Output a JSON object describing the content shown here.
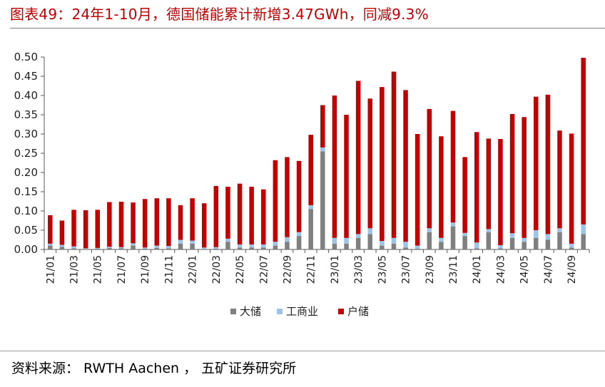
{
  "title": "图表49：24年1-10月，德国储能累计新增3.47GWh，同减9.3%",
  "source": "资料来源： RWTH Aachen ， 五矿证券研究所",
  "chart_data": {
    "type": "bar",
    "stacked": true,
    "title": "",
    "xlabel": "",
    "ylabel": "",
    "ylim": [
      0,
      0.5
    ],
    "yticks": [
      "0.00",
      "0.05",
      "0.10",
      "0.15",
      "0.20",
      "0.25",
      "0.30",
      "0.35",
      "0.40",
      "0.45",
      "0.50"
    ],
    "grid": false,
    "legend_position": "bottom",
    "categories": [
      "21/01",
      "21/02",
      "21/03",
      "21/04",
      "21/05",
      "21/06",
      "21/07",
      "21/08",
      "21/09",
      "21/10",
      "21/11",
      "21/12",
      "22/01",
      "22/02",
      "22/03",
      "22/04",
      "22/05",
      "22/06",
      "22/07",
      "22/08",
      "22/09",
      "22/10",
      "22/11",
      "22/12",
      "23/01",
      "23/02",
      "23/03",
      "23/04",
      "23/05",
      "23/06",
      "23/07",
      "23/08",
      "23/09",
      "23/10",
      "23/11",
      "23/12",
      "24/01",
      "24/02",
      "24/03",
      "24/04",
      "24/05",
      "24/06",
      "24/07",
      "24/08",
      "24/09",
      "24/10"
    ],
    "tick_labels": [
      "21/01",
      "",
      "21/03",
      "",
      "21/05",
      "",
      "21/07",
      "",
      "21/09",
      "",
      "21/11",
      "",
      "22/01",
      "",
      "22/03",
      "",
      "22/05",
      "",
      "22/07",
      "",
      "22/09",
      "",
      "22/11",
      "",
      "23/01",
      "",
      "23/03",
      "",
      "23/05",
      "",
      "23/07",
      "",
      "23/09",
      "",
      "23/11",
      "",
      "24/01",
      "",
      "24/03",
      "",
      "24/05",
      "",
      "24/07",
      "",
      "24/09",
      ""
    ],
    "series": [
      {
        "name": "大储",
        "color": "#7f7f7f",
        "values": [
          0.01,
          0.007,
          0.003,
          0.001,
          0.002,
          0.004,
          0.003,
          0.01,
          0.002,
          0.004,
          0.003,
          0.015,
          0.015,
          0.001,
          0.002,
          0.02,
          0.005,
          0.005,
          0.005,
          0.01,
          0.02,
          0.035,
          0.105,
          0.255,
          0.015,
          0.015,
          0.03,
          0.04,
          0.01,
          0.015,
          0.005,
          0.002,
          0.045,
          0.02,
          0.06,
          0.035,
          0.003,
          0.045,
          0.003,
          0.03,
          0.02,
          0.03,
          0.025,
          0.045,
          0.005,
          0.04
        ]
      },
      {
        "name": "工商业",
        "color": "#9dc3e6",
        "values": [
          0.005,
          0.005,
          0.005,
          0.002,
          0.002,
          0.003,
          0.003,
          0.006,
          0.003,
          0.006,
          0.006,
          0.01,
          0.008,
          0.004,
          0.004,
          0.008,
          0.008,
          0.008,
          0.008,
          0.01,
          0.012,
          0.01,
          0.01,
          0.01,
          0.015,
          0.015,
          0.01,
          0.015,
          0.012,
          0.015,
          0.015,
          0.008,
          0.01,
          0.01,
          0.01,
          0.008,
          0.015,
          0.008,
          0.008,
          0.012,
          0.01,
          0.02,
          0.015,
          0.01,
          0.01,
          0.025
        ]
      },
      {
        "name": "户储",
        "color": "#c00000",
        "values": [
          0.074,
          0.063,
          0.095,
          0.099,
          0.099,
          0.116,
          0.118,
          0.106,
          0.126,
          0.123,
          0.124,
          0.09,
          0.11,
          0.115,
          0.159,
          0.135,
          0.158,
          0.15,
          0.143,
          0.212,
          0.208,
          0.185,
          0.183,
          0.11,
          0.37,
          0.32,
          0.398,
          0.337,
          0.4,
          0.432,
          0.394,
          0.29,
          0.31,
          0.264,
          0.29,
          0.197,
          0.287,
          0.235,
          0.276,
          0.31,
          0.314,
          0.347,
          0.362,
          0.254,
          0.286,
          0.433
        ]
      }
    ]
  }
}
